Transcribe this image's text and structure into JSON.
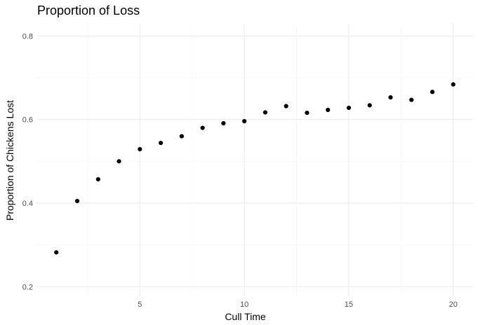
{
  "chart_data": {
    "type": "scatter",
    "title": "Proportion of Loss",
    "xlabel": "Cull Time",
    "ylabel": "Proportion of Chickens Lost",
    "x": [
      1,
      2,
      3,
      4,
      5,
      6,
      7,
      8,
      9,
      10,
      11,
      12,
      13,
      14,
      15,
      16,
      17,
      18,
      19,
      20
    ],
    "y": [
      0.282,
      0.405,
      0.457,
      0.5,
      0.529,
      0.544,
      0.56,
      0.58,
      0.591,
      0.596,
      0.617,
      0.632,
      0.616,
      0.623,
      0.628,
      0.634,
      0.653,
      0.647,
      0.666,
      0.684
    ],
    "xlim": [
      0.05,
      20.95
    ],
    "ylim": [
      0.177,
      0.829
    ],
    "xticks": [
      5,
      10,
      15,
      20
    ],
    "yticks": [
      0.2,
      0.4,
      0.6,
      0.8
    ],
    "xtick_labels": [
      "5",
      "10",
      "15",
      "20"
    ],
    "ytick_labels": [
      "0.2",
      "0.4",
      "0.6",
      "0.8"
    ],
    "grid": true,
    "legend": "none"
  }
}
